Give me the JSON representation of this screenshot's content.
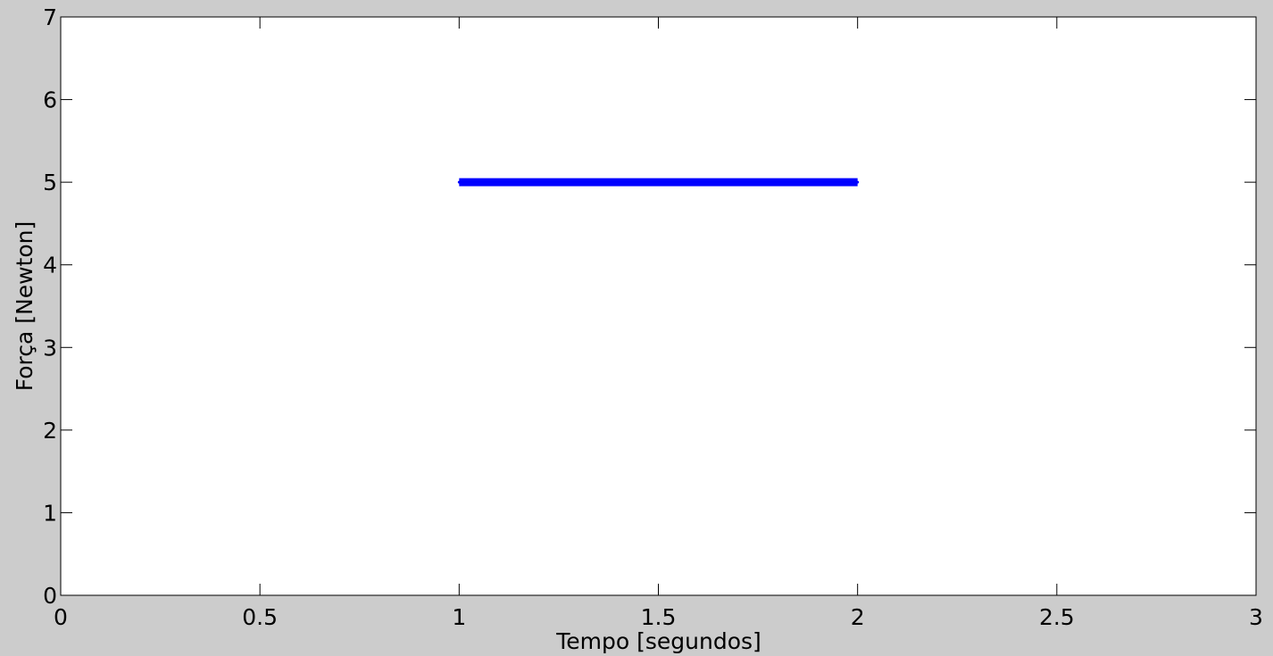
{
  "chart_data": {
    "type": "line",
    "title": "",
    "xlabel": "Tempo [segundos]",
    "ylabel": "Força [Newton]",
    "xlim": [
      0,
      3
    ],
    "ylim": [
      0,
      7
    ],
    "x_ticks": [
      0,
      0.5,
      1,
      1.5,
      2,
      2.5,
      3
    ],
    "x_tick_labels": [
      "0",
      "0.5",
      "1",
      "1.5",
      "2",
      "2.5",
      "3"
    ],
    "y_ticks": [
      0,
      1,
      2,
      3,
      4,
      5,
      6,
      7
    ],
    "y_tick_labels": [
      "0",
      "1",
      "2",
      "3",
      "4",
      "5",
      "6",
      "7"
    ],
    "grid": false,
    "series": [
      {
        "x": [
          1,
          2
        ],
        "y": [
          5,
          5
        ],
        "color": "#0000ff"
      }
    ],
    "colors": {
      "background": "#cccccc",
      "plot_area": "#ffffff",
      "axes": "#000000",
      "series": "#0000ff"
    }
  }
}
